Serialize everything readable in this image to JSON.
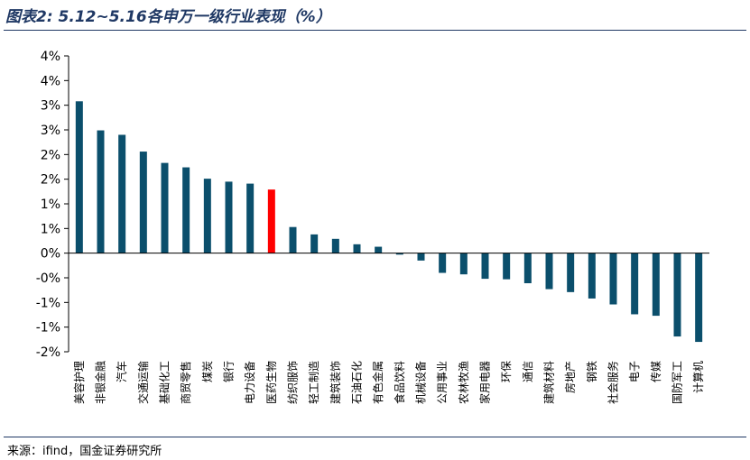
{
  "header": {
    "title": "图表2: 5.12~5.16各申万一级行业表现（%）"
  },
  "footer": {
    "source": "来源：ifind，国金证券研究所"
  },
  "chart_data": {
    "type": "bar",
    "title": "图表2: 5.12~5.16各申万一级行业表现（%）",
    "xlabel": "",
    "ylabel": "",
    "ylim": [
      -2,
      4
    ],
    "yticks": [
      -2,
      -1.5,
      -1,
      -0.5,
      0,
      0.5,
      1,
      1.5,
      2,
      2.5,
      3,
      3.5,
      4
    ],
    "ytick_labels": [
      "-2%",
      "-1%",
      "-1%",
      "-0%",
      "0%",
      "1%",
      "1%",
      "2%",
      "2%",
      "3%",
      "3%",
      "4%",
      "4%"
    ],
    "grid": false,
    "legend": "none",
    "colors": {
      "default": "#0b4f6c",
      "highlight": "#ff0000"
    },
    "highlight_category": "医药生物",
    "categories": [
      "美容护理",
      "非银金融",
      "汽车",
      "交通运输",
      "基础化工",
      "商贸零售",
      "煤炭",
      "银行",
      "电力设备",
      "医药生物",
      "纺织服饰",
      "轻工制造",
      "建筑装饰",
      "石油石化",
      "有色金属",
      "食品饮料",
      "机械设备",
      "公用事业",
      "农林牧渔",
      "家用电器",
      "环保",
      "通信",
      "建筑材料",
      "房地产",
      "钢铁",
      "社会服务",
      "电子",
      "传媒",
      "国防军工",
      "计算机"
    ],
    "values": [
      3.08,
      2.49,
      2.4,
      2.06,
      1.83,
      1.74,
      1.51,
      1.45,
      1.41,
      1.29,
      0.53,
      0.38,
      0.29,
      0.18,
      0.13,
      -0.03,
      -0.15,
      -0.4,
      -0.43,
      -0.52,
      -0.53,
      -0.61,
      -0.73,
      -0.79,
      -0.92,
      -1.04,
      -1.24,
      -1.27,
      -1.69,
      -1.8
    ]
  }
}
